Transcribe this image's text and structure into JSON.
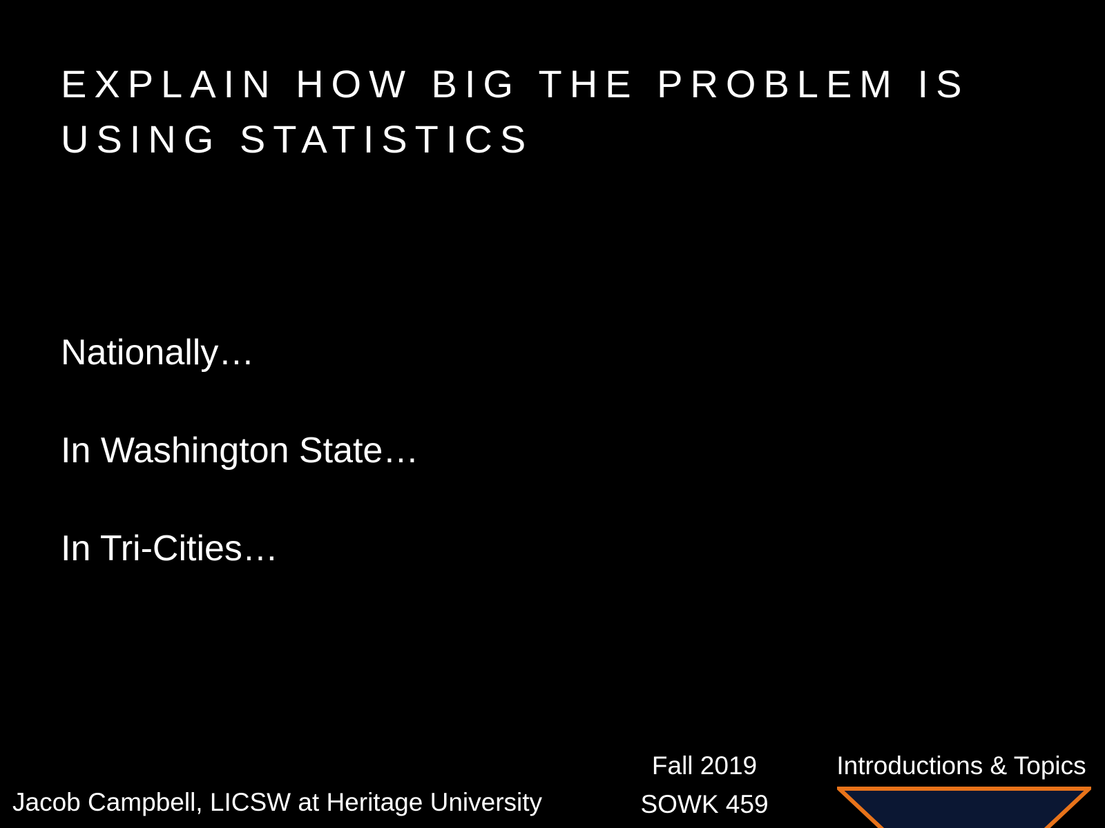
{
  "slide": {
    "title_line1": "EXPLAIN HOW BIG THE PROBLEM IS",
    "title_line2": "USING STATISTICS",
    "bullets": [
      "Nationally…",
      "In Washington State…",
      "In Tri-Cities…"
    ]
  },
  "footer": {
    "author": "Jacob Campbell, LICSW at Heritage University",
    "term": "Fall 2019",
    "course": "SOWK 459",
    "topic": "Introductions & Topics"
  },
  "colors": {
    "background": "#000000",
    "text": "#ffffff",
    "logo_fill": "#0b1733",
    "logo_border": "#e8731a"
  },
  "icons": {
    "logo": "heritage-university-shield-icon"
  }
}
